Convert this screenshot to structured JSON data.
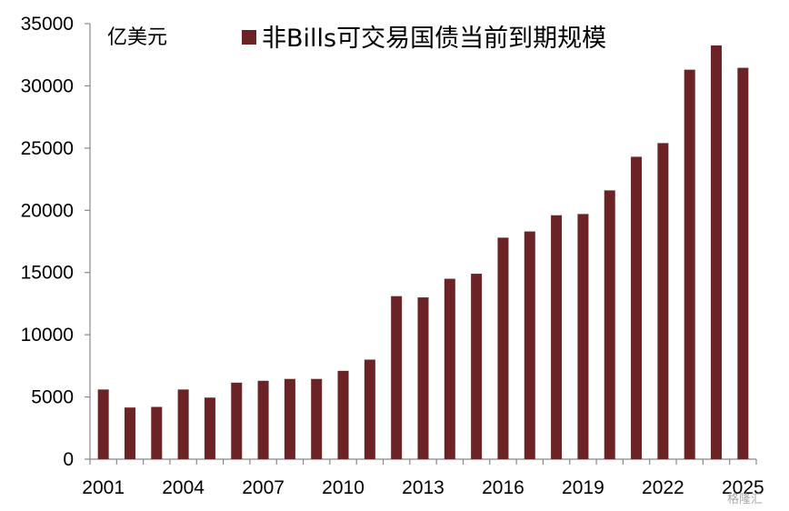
{
  "chart_data": {
    "type": "bar",
    "title": "",
    "unit_label": "亿美元",
    "xlabel": "",
    "ylabel": "",
    "ylim": [
      0,
      35000
    ],
    "yticks": [
      0,
      5000,
      10000,
      15000,
      20000,
      25000,
      30000,
      35000
    ],
    "categories": [
      "2001",
      "2002",
      "2003",
      "2004",
      "2005",
      "2006",
      "2007",
      "2008",
      "2009",
      "2010",
      "2011",
      "2012",
      "2013",
      "2014",
      "2015",
      "2016",
      "2017",
      "2018",
      "2019",
      "2020",
      "2021",
      "2022",
      "2023",
      "2024",
      "2025"
    ],
    "xtick_labels": [
      "2001",
      "2004",
      "2007",
      "2010",
      "2013",
      "2016",
      "2019",
      "2022",
      "2025"
    ],
    "series": [
      {
        "name": "非Bills可交易国债当前到期规模",
        "color": "#6b2326",
        "values": [
          5600,
          4150,
          4200,
          5600,
          4950,
          6150,
          6300,
          6450,
          6450,
          7100,
          8000,
          13100,
          13000,
          14500,
          14900,
          17800,
          18300,
          19600,
          19700,
          21600,
          24300,
          25400,
          31300,
          33250,
          31450
        ]
      }
    ],
    "grid": false,
    "legend_position": "top"
  },
  "watermark": "格隆汇"
}
